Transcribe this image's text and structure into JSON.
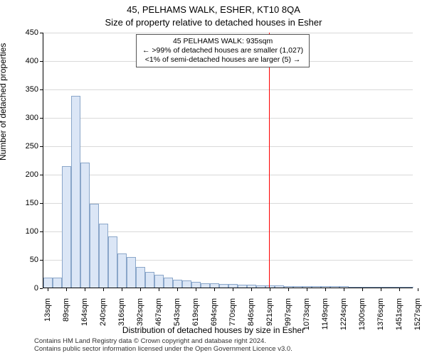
{
  "titles": {
    "line1": "45, PELHAMS WALK, ESHER, KT10 8QA",
    "line2": "Size of property relative to detached houses in Esher"
  },
  "axes": {
    "ylabel": "Number of detached properties",
    "xlabel": "Distribution of detached houses by size in Esher"
  },
  "chart": {
    "type": "histogram",
    "background_color": "#ffffff",
    "grid_color": "#d9d9d9",
    "axis_color": "#000000",
    "bar_fill": "#dbe6f6",
    "bar_stroke": "#8aa6c9",
    "bar_stroke_width": 1,
    "label_fontsize": 12,
    "tick_fontsize": 11,
    "title_fontsize": 13,
    "ymin": 0,
    "ymax": 450,
    "ytick_step": 50,
    "yticks": [
      0,
      50,
      100,
      150,
      200,
      250,
      300,
      350,
      400,
      450
    ],
    "xmin": 0,
    "xmax": 40,
    "xticks_every": 2,
    "xtick_labels": [
      "13sqm",
      "89sqm",
      "164sqm",
      "240sqm",
      "316sqm",
      "392sqm",
      "467sqm",
      "543sqm",
      "619sqm",
      "694sqm",
      "770sqm",
      "846sqm",
      "921sqm",
      "997sqm",
      "1073sqm",
      "1149sqm",
      "1224sqm",
      "1300sqm",
      "1376sqm",
      "1451sqm",
      "1527sqm"
    ],
    "values": [
      18,
      18,
      214,
      338,
      220,
      148,
      112,
      90,
      60,
      54,
      36,
      28,
      22,
      18,
      14,
      12,
      10,
      8,
      8,
      6,
      6,
      5,
      5,
      4,
      4,
      4,
      3,
      3,
      2,
      2,
      2,
      2,
      2,
      1,
      1,
      1,
      1,
      1,
      1,
      1
    ]
  },
  "marker": {
    "color": "#ff0000",
    "slot_position": 24.4,
    "label_sqm": "935sqm"
  },
  "annotation": {
    "line1": "45 PELHAMS WALK: 935sqm",
    "line2": "← >99% of detached houses are smaller (1,027)",
    "line3": "<1% of semi-detached houses are larger (5) →",
    "border_color": "#555555",
    "bg_color": "#ffffff",
    "fontsize": 10.5
  },
  "footer": {
    "line1": "Contains HM Land Registry data © Crown copyright and database right 2024.",
    "line2": "Contains public sector information licensed under the Open Government Licence v3.0."
  }
}
